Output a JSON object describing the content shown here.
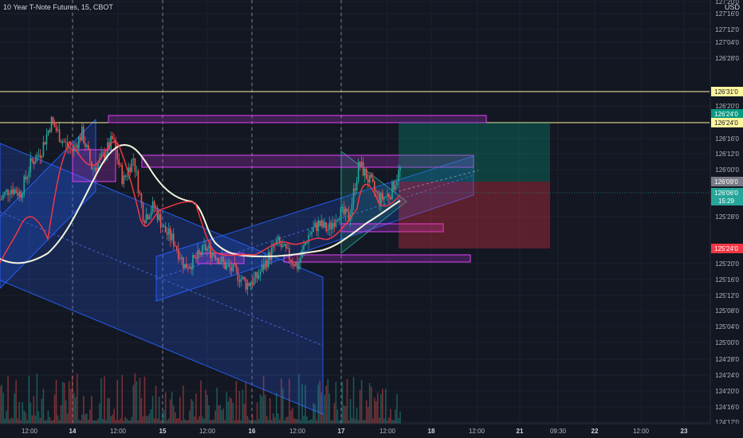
{
  "chart_title": "10 Year T-Note Futures, 15, CBOT",
  "currency": "USD",
  "colors": {
    "background": "#131722",
    "grid": "#1e222d",
    "axis_text": "#b2b5be",
    "bull": "#26a69a",
    "bear": "#ef5350",
    "channel_blue": "#2962ff",
    "zone_magenta": "#e040fb",
    "horizontal_line": "#fff59d",
    "ma_white": "#f5f5dc",
    "ma_red": "#f23645",
    "target_green": "#089981",
    "stop_red": "#f23645",
    "last_price_tag": "#26a69a",
    "current_tag": "#787b86"
  },
  "chart_data": {
    "type": "candlestick",
    "timeframe": "15",
    "symbol": "10 Year T-Note Futures",
    "exchange": "CBOT",
    "y_axis": {
      "ticks": [
        "127'20'0",
        "127'16'0",
        "127'12'0",
        "127'04'0",
        "126'28'0",
        "126'20'0",
        "126'16'0",
        "126'12'0",
        "126'00'0",
        "125'28'0",
        "125'20'0",
        "125'16'0",
        "125'12'0",
        "125'08'0",
        "125'04'0",
        "125'00'0",
        "124'28'0",
        "124'24'0",
        "124'20'0",
        "124'16'0",
        "124'12'0"
      ]
    },
    "x_axis": {
      "ticks": [
        {
          "label": "12:00",
          "bold": false
        },
        {
          "label": "14",
          "bold": true
        },
        {
          "label": "12:00",
          "bold": false
        },
        {
          "label": "15",
          "bold": true
        },
        {
          "label": "12:00",
          "bold": false
        },
        {
          "label": "16",
          "bold": true
        },
        {
          "label": "12:00",
          "bold": false
        },
        {
          "label": "17",
          "bold": true
        },
        {
          "label": "12:00",
          "bold": false
        },
        {
          "label": "18",
          "bold": true
        },
        {
          "label": "12:00",
          "bold": false
        },
        {
          "label": "21",
          "bold": true
        },
        {
          "label": "09:30",
          "bold": false
        },
        {
          "label": "22",
          "bold": true
        },
        {
          "label": "12:00",
          "bold": false
        },
        {
          "label": "23",
          "bold": true
        }
      ]
    },
    "price_tags": [
      {
        "text": "126'31'0",
        "kind": "horizontal-line"
      },
      {
        "text": "126'24'0",
        "kind": "target"
      },
      {
        "text": "126'24'0",
        "kind": "horizontal-line"
      },
      {
        "text": "126'09'0",
        "kind": "entry"
      },
      {
        "text": "126'06'0",
        "kind": "last-price"
      },
      {
        "text": "15:29",
        "kind": "countdown"
      },
      {
        "text": "125'24'0",
        "kind": "stop"
      }
    ],
    "price_path": [
      126.05,
      126.15,
      126.1,
      126.35,
      126.45,
      126.7,
      126.55,
      126.45,
      126.6,
      126.3,
      126.4,
      126.55,
      126.2,
      126.4,
      125.9,
      126.0,
      125.8,
      125.7,
      125.5,
      125.55,
      125.65,
      125.6,
      125.5,
      125.45,
      125.35,
      125.4,
      125.55,
      125.7,
      125.6,
      125.5,
      125.75,
      125.85,
      125.8,
      125.95,
      125.9,
      126.35,
      126.2,
      126.05,
      126.1,
      126.3
    ]
  }
}
